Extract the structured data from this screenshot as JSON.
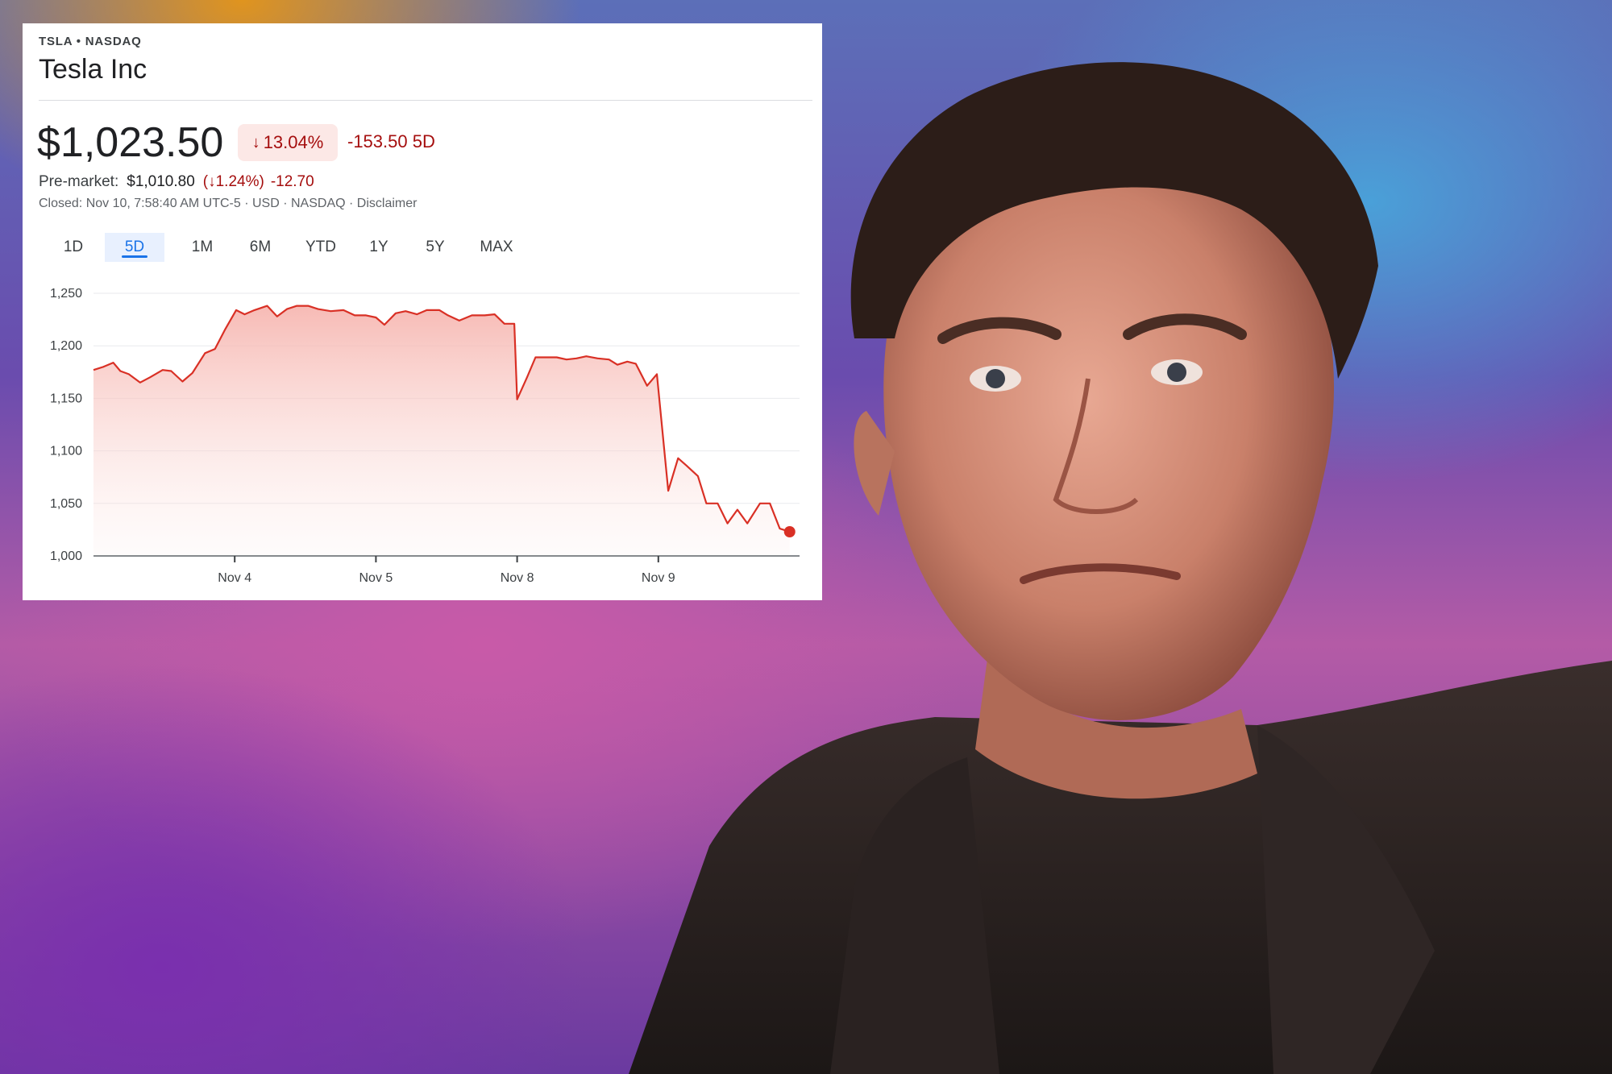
{
  "card": {
    "ticker": "TSLA • NASDAQ",
    "company": "Tesla Inc",
    "price": "$1,023.50",
    "change_pct_arrow": "↓",
    "change_pct": "13.04%",
    "change_abs": "-153.50 5D",
    "premarket_label": "Pre-market:",
    "premarket_price": "$1,010.80",
    "premarket_pct": "(↓1.24%)",
    "premarket_abs": "-12.70",
    "closed_text": "Closed: Nov 10, 7:58:40 AM UTC-5 · USD · NASDAQ · Disclaimer",
    "tabs": [
      {
        "label": "1D",
        "active": false
      },
      {
        "label": "5D",
        "active": true
      },
      {
        "label": "1M",
        "active": false
      },
      {
        "label": "6M",
        "active": false
      },
      {
        "label": "YTD",
        "active": false
      },
      {
        "label": "1Y",
        "active": false
      },
      {
        "label": "5Y",
        "active": false
      },
      {
        "label": "MAX",
        "active": false
      }
    ],
    "colors": {
      "down": "#d93025",
      "down_text": "#a50e0e",
      "accent": "#1a73e8"
    }
  },
  "chart_data": {
    "type": "area",
    "ylim": [
      1000,
      1250
    ],
    "yticks": [
      1000,
      1050,
      1100,
      1150,
      1200,
      1250
    ],
    "ytick_labels": [
      "1,000",
      "1,050",
      "1,100",
      "1,150",
      "1,200",
      "1,250"
    ],
    "xlim": [
      0,
      5
    ],
    "xticks": [
      1,
      2,
      3,
      4
    ],
    "xtick_labels": [
      "Nov 4",
      "Nov 5",
      "Nov 8",
      "Nov 9"
    ],
    "grid": true,
    "series": [
      {
        "color": "#d93025",
        "points": [
          [
            0.0,
            1177
          ],
          [
            0.07,
            1180
          ],
          [
            0.14,
            1184
          ],
          [
            0.19,
            1176
          ],
          [
            0.25,
            1173
          ],
          [
            0.33,
            1165
          ],
          [
            0.4,
            1170
          ],
          [
            0.49,
            1177
          ],
          [
            0.55,
            1176
          ],
          [
            0.63,
            1166
          ],
          [
            0.7,
            1174
          ],
          [
            0.79,
            1193
          ],
          [
            0.86,
            1197
          ],
          [
            0.93,
            1215
          ],
          [
            1.01,
            1234
          ],
          [
            1.07,
            1230
          ],
          [
            1.14,
            1234
          ],
          [
            1.23,
            1238
          ],
          [
            1.3,
            1228
          ],
          [
            1.37,
            1235
          ],
          [
            1.44,
            1238
          ],
          [
            1.52,
            1238
          ],
          [
            1.59,
            1235
          ],
          [
            1.68,
            1233
          ],
          [
            1.77,
            1234
          ],
          [
            1.85,
            1229
          ],
          [
            1.93,
            1229
          ],
          [
            2.0,
            1227
          ],
          [
            2.06,
            1220
          ],
          [
            2.14,
            1231
          ],
          [
            2.21,
            1233
          ],
          [
            2.29,
            1230
          ],
          [
            2.36,
            1234
          ],
          [
            2.45,
            1234
          ],
          [
            2.51,
            1229
          ],
          [
            2.59,
            1224
          ],
          [
            2.68,
            1229
          ],
          [
            2.77,
            1229
          ],
          [
            2.84,
            1230
          ],
          [
            2.91,
            1221
          ],
          [
            2.98,
            1221
          ],
          [
            3.0,
            1149
          ],
          [
            3.07,
            1170
          ],
          [
            3.13,
            1189
          ],
          [
            3.2,
            1189
          ],
          [
            3.28,
            1189
          ],
          [
            3.35,
            1187
          ],
          [
            3.42,
            1188
          ],
          [
            3.49,
            1190
          ],
          [
            3.57,
            1188
          ],
          [
            3.65,
            1187
          ],
          [
            3.71,
            1182
          ],
          [
            3.78,
            1185
          ],
          [
            3.84,
            1183
          ],
          [
            3.92,
            1162
          ],
          [
            3.99,
            1173
          ],
          [
            4.07,
            1062
          ],
          [
            4.14,
            1093
          ],
          [
            4.2,
            1086
          ],
          [
            4.28,
            1076
          ],
          [
            4.34,
            1050
          ],
          [
            4.42,
            1050
          ],
          [
            4.49,
            1031
          ],
          [
            4.56,
            1044
          ],
          [
            4.63,
            1031
          ],
          [
            4.72,
            1050
          ],
          [
            4.79,
            1050
          ],
          [
            4.86,
            1026
          ],
          [
            4.93,
            1023
          ]
        ]
      }
    ]
  }
}
